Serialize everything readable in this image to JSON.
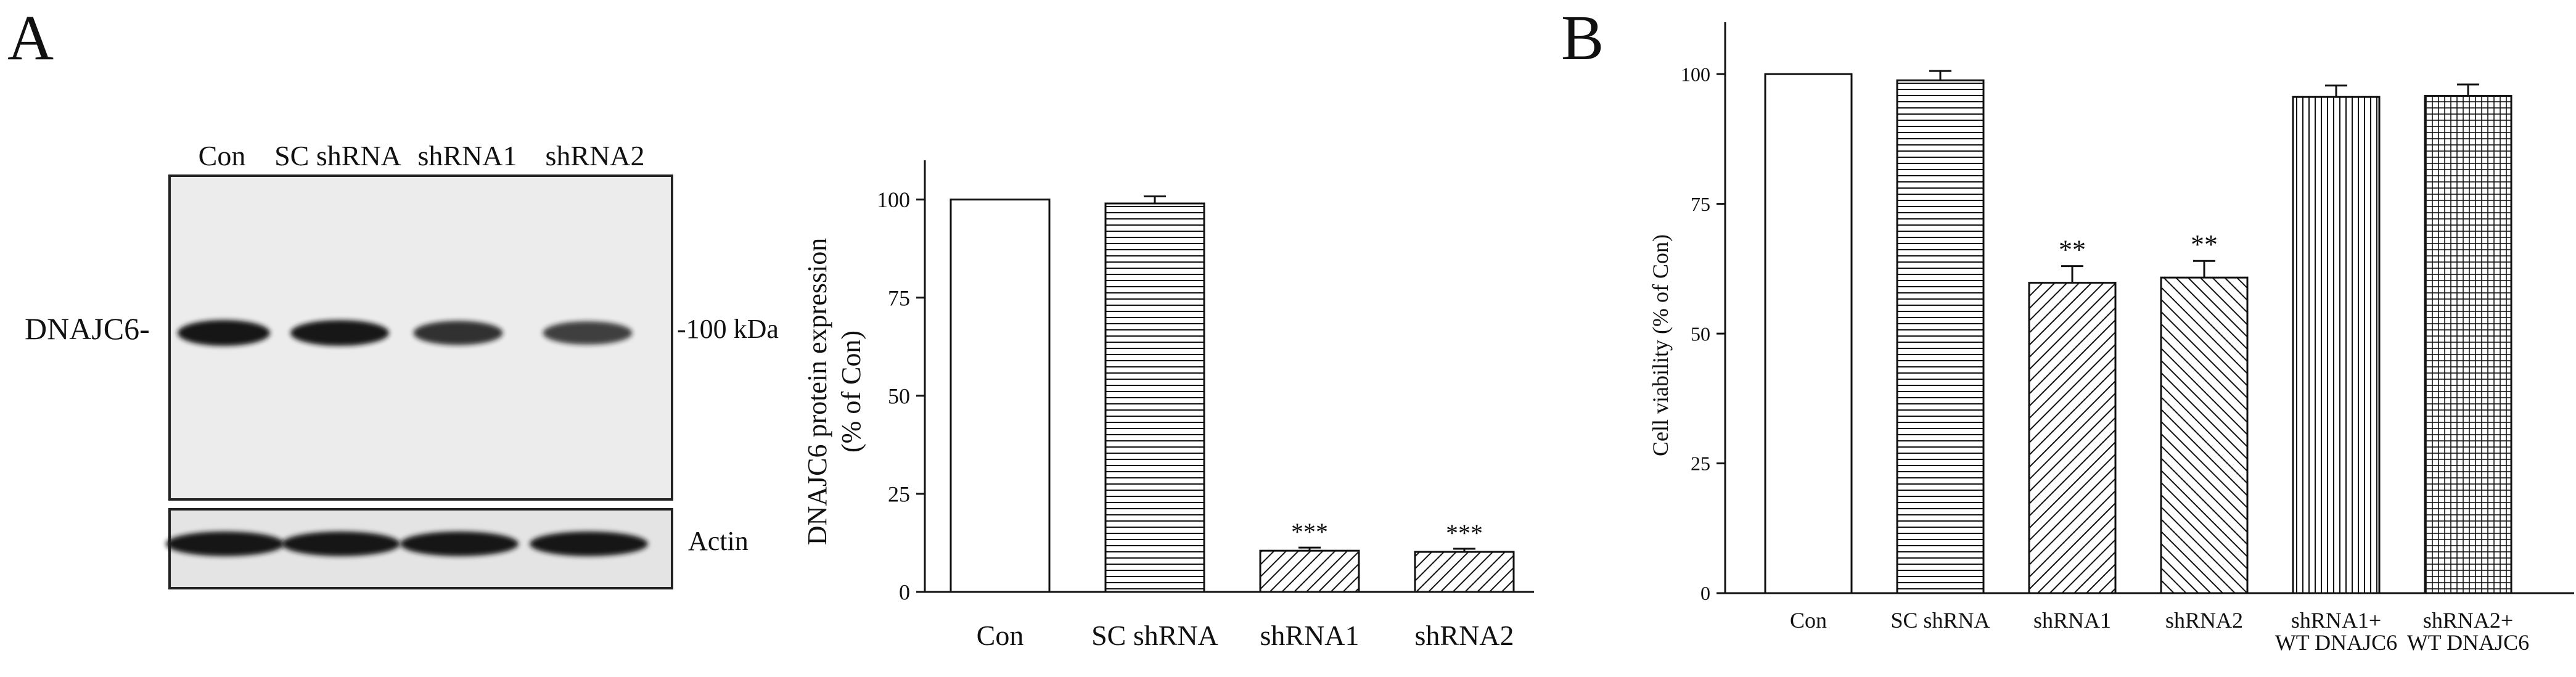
{
  "panels": {
    "a_label": "A",
    "b_label": "B"
  },
  "blot": {
    "lane_labels": [
      "Con",
      "SC shRNA",
      "shRNA1",
      "shRNA2"
    ],
    "protein_label": "DNAJC6-",
    "marker_label": "-100 kDa",
    "loading_label": "Actin",
    "dnajc6_band_intensity": [
      1.0,
      0.99,
      0.8,
      0.7
    ],
    "actin_band_intensity": [
      1.0,
      1.0,
      1.0,
      1.0
    ],
    "colors": {
      "membrane": "#ececec",
      "band": "#161616",
      "border": "#222222"
    }
  },
  "chart_data": [
    {
      "type": "bar",
      "categories": [
        "Con",
        "SC shRNA",
        "shRNA1",
        "shRNA2"
      ],
      "values": [
        100,
        99,
        10.5,
        10.2
      ],
      "errors": [
        0,
        1.8,
        0.8,
        0.8
      ],
      "patterns": [
        "none",
        "horizontal",
        "diagonal-right",
        "diagonal-right"
      ],
      "significance": [
        "",
        "",
        "***",
        "***"
      ],
      "ylabel_line1": "DNAJC6 protein expression",
      "ylabel_line2": "(% of Con)",
      "xlabel": "",
      "yticks": [
        0,
        25,
        50,
        75,
        100
      ],
      "ylim": [
        0,
        110
      ],
      "grid": false
    },
    {
      "type": "bar",
      "categories": [
        [
          "Con"
        ],
        [
          "SC shRNA"
        ],
        [
          "shRNA1"
        ],
        [
          "shRNA2"
        ],
        [
          "shRNA1+",
          "WT DNAJC6"
        ],
        [
          "shRNA2+",
          "WT DNAJC6"
        ]
      ],
      "values": [
        100,
        98.8,
        59.8,
        60.8,
        95.6,
        95.8
      ],
      "errors": [
        0,
        1.8,
        3.2,
        3.2,
        2.2,
        2.2
      ],
      "patterns": [
        "none",
        "horizontal",
        "diagonal-right",
        "diagonal-left",
        "vertical",
        "grid"
      ],
      "significance": [
        "",
        "",
        "**",
        "**",
        "",
        ""
      ],
      "ylabel": "Cell viability (% of Con)",
      "xlabel": "",
      "yticks": [
        0,
        25,
        50,
        75,
        100
      ],
      "ylim": [
        0,
        110
      ],
      "grid": false
    }
  ]
}
